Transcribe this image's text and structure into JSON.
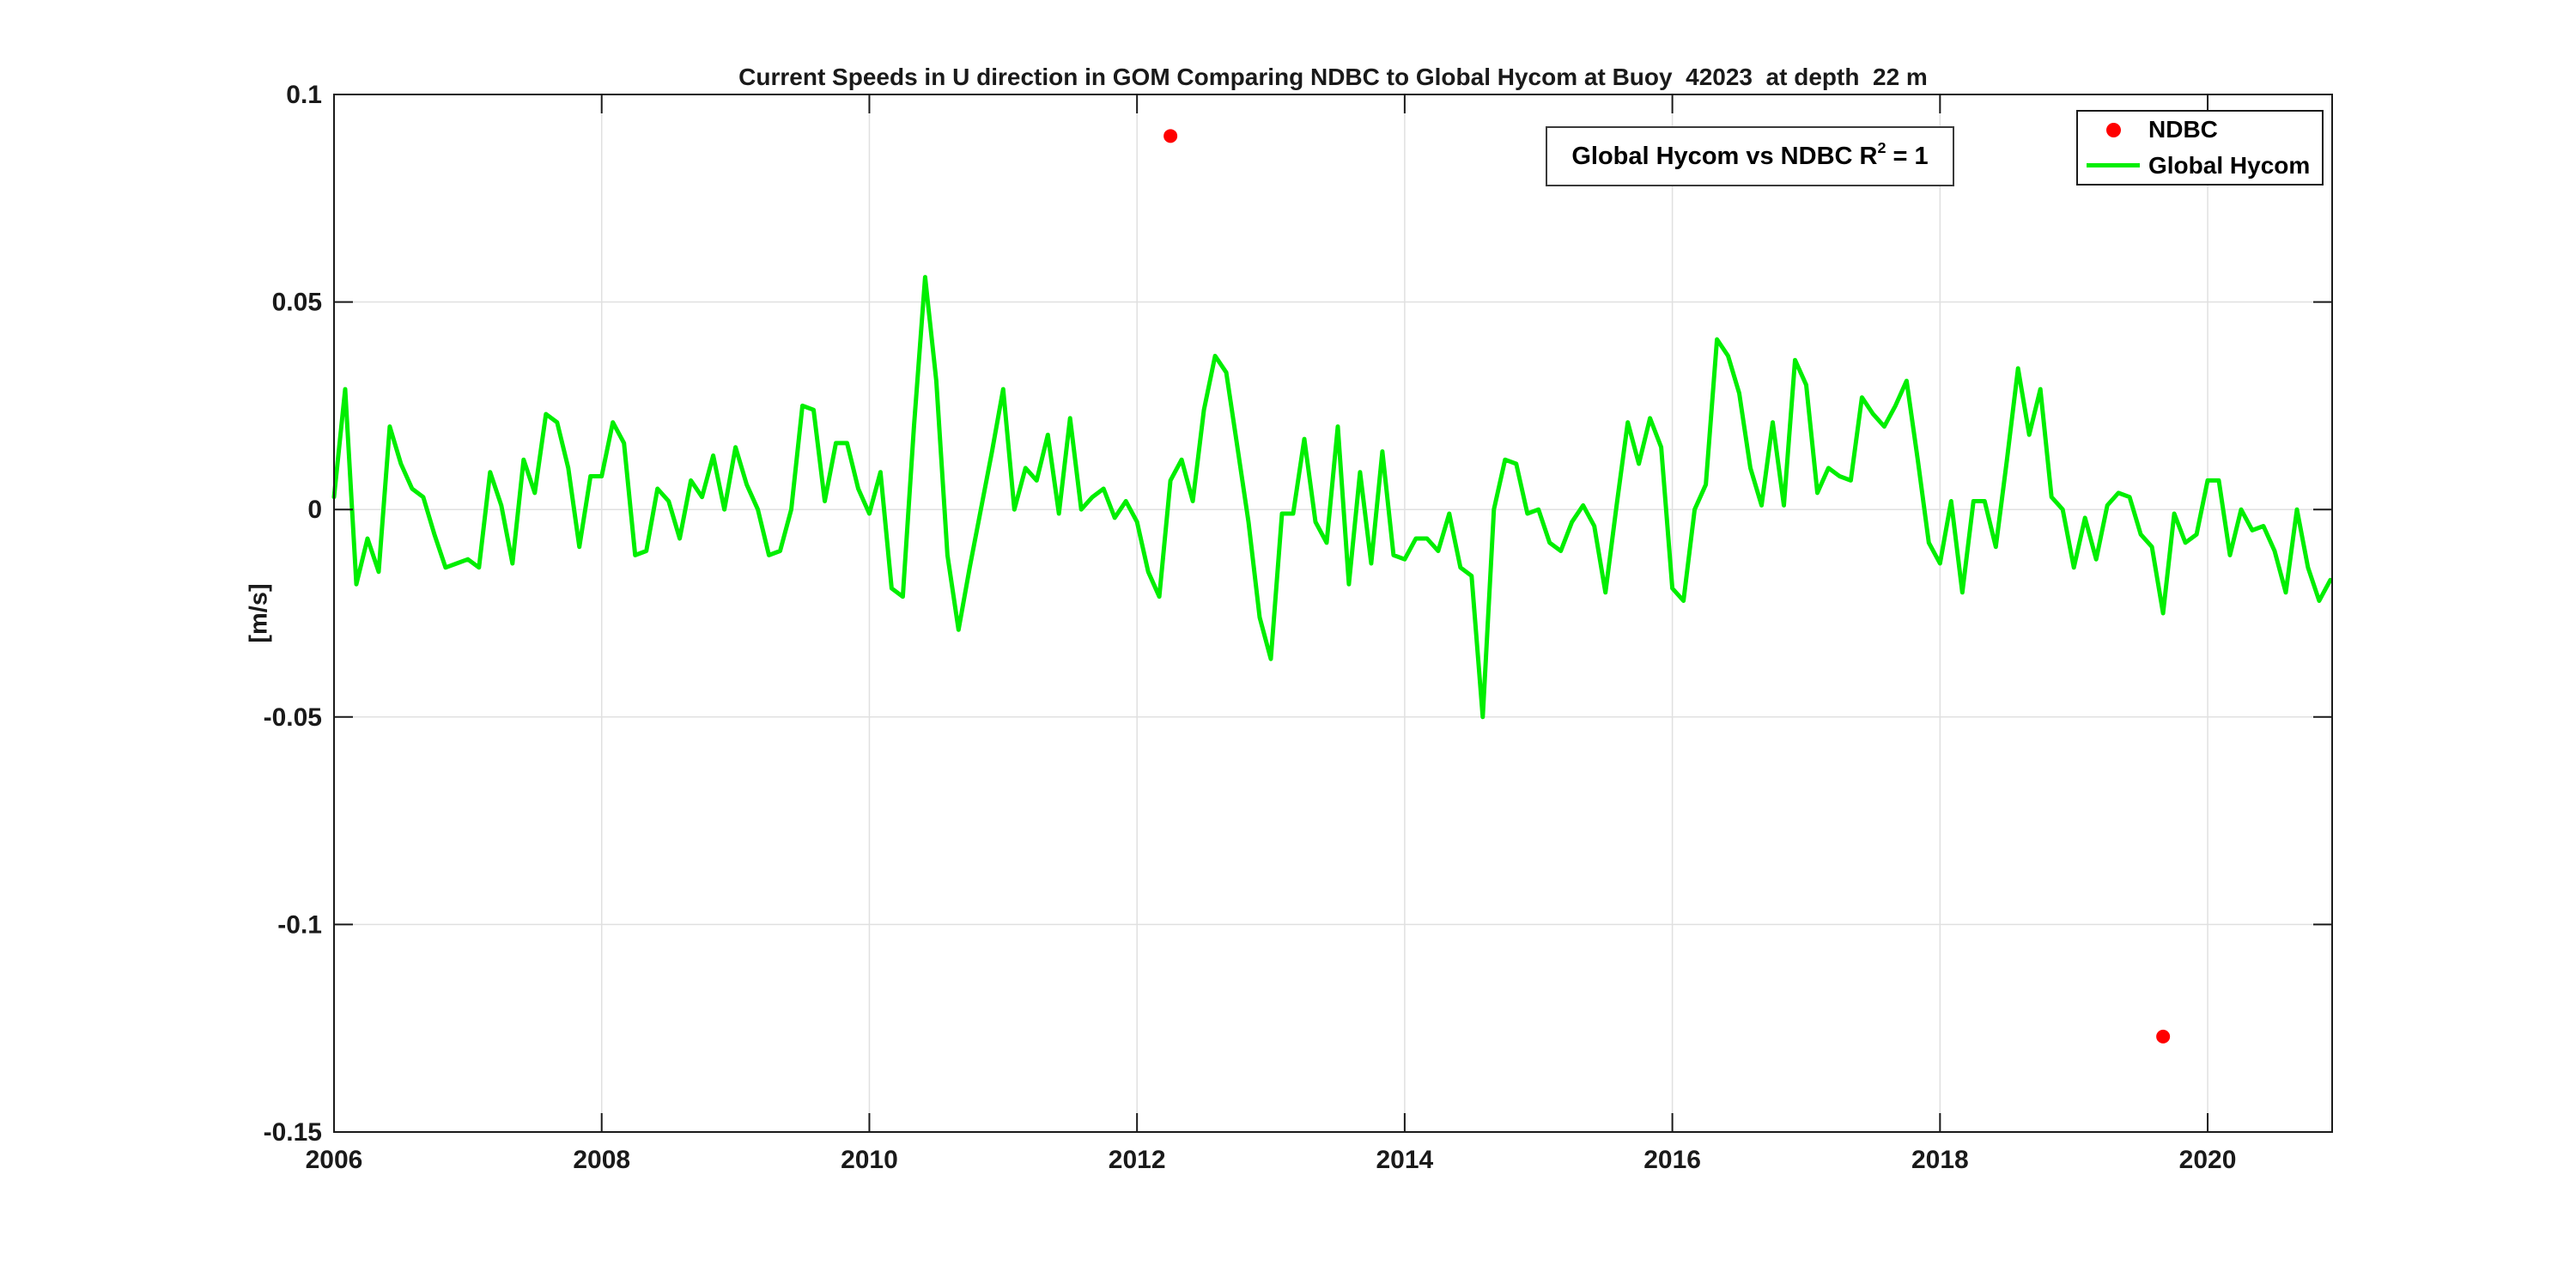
{
  "figure": {
    "title": "Current Speeds in U direction in GOM Comparing NDBC to Global Hycom at Buoy  42023  at depth  22 m",
    "background": "#ffffff",
    "text_color": "#1a1a1a",
    "grid_color": "#e0e0e0",
    "axis_color": "#1a1a1a"
  },
  "annotation": {
    "prefix": "Global Hycom vs NDBC R",
    "superscript": "2",
    "suffix": " = 1"
  },
  "legend": {
    "items": [
      {
        "label": "NDBC",
        "marker": "dot",
        "color": "#ff0000"
      },
      {
        "label": "Global Hycom",
        "marker": "line",
        "color": "#00ee00"
      }
    ]
  },
  "chart_data": {
    "type": "line",
    "title": "Current Speeds in U direction in GOM Comparing NDBC to Global Hycom at Buoy  42023  at depth  22 m",
    "xlabel": "",
    "ylabel": "[m/s]",
    "xlim": [
      2006,
      2020.93
    ],
    "ylim": [
      -0.15,
      0.1
    ],
    "xticks": [
      2006,
      2008,
      2010,
      2012,
      2014,
      2016,
      2018,
      2020
    ],
    "ytick_values": [
      0.1,
      0.05,
      0,
      -0.05,
      -0.1,
      -0.15
    ],
    "ytick_labels": [
      "0.1",
      "0.05",
      "0",
      "-0.05",
      "-0.1",
      "-0.15"
    ],
    "grid": true,
    "legend_position": "top-right",
    "series": [
      {
        "name": "NDBC",
        "type": "scatter",
        "color": "#ff0000",
        "marker_radius": 8,
        "points": [
          {
            "x": 2012.25,
            "y": 0.09
          },
          {
            "x": 2019.667,
            "y": -0.127
          }
        ]
      },
      {
        "name": "Global Hycom",
        "type": "line",
        "color": "#00ee00",
        "line_width": 5,
        "x_start": 2006,
        "x_step": 0.0833333,
        "values": [
          0.003,
          0.029,
          -0.018,
          -0.007,
          -0.015,
          0.02,
          0.011,
          0.005,
          0.003,
          -0.006,
          -0.014,
          -0.013,
          -0.012,
          -0.014,
          0.009,
          0.001,
          -0.013,
          0.012,
          0.004,
          0.023,
          0.021,
          0.01,
          -0.009,
          0.008,
          0.008,
          0.021,
          0.016,
          -0.011,
          -0.01,
          0.005,
          0.002,
          -0.007,
          0.007,
          0.003,
          0.013,
          0.0,
          0.015,
          0.006,
          0.0,
          -0.011,
          -0.01,
          0.0,
          0.025,
          0.024,
          0.002,
          0.016,
          0.016,
          0.005,
          -0.001,
          0.009,
          -0.019,
          -0.021,
          0.02,
          0.056,
          0.031,
          -0.011,
          -0.029,
          -0.014,
          0.0,
          0.014,
          0.029,
          0.0,
          0.01,
          0.007,
          0.018,
          -0.001,
          0.022,
          0.0,
          0.003,
          0.005,
          -0.002,
          0.002,
          -0.003,
          -0.015,
          -0.021,
          0.007,
          0.012,
          0.002,
          0.024,
          0.037,
          0.033,
          0.015,
          -0.003,
          -0.026,
          -0.036,
          -0.001,
          -0.001,
          0.017,
          -0.003,
          -0.008,
          0.02,
          -0.018,
          0.009,
          -0.013,
          0.014,
          -0.011,
          -0.012,
          -0.007,
          -0.007,
          -0.01,
          -0.001,
          -0.014,
          -0.016,
          -0.05,
          0.0,
          0.012,
          0.011,
          -0.001,
          0.0,
          -0.008,
          -0.01,
          -0.003,
          0.001,
          -0.004,
          -0.02,
          0.001,
          0.021,
          0.011,
          0.022,
          0.015,
          -0.019,
          -0.022,
          0.0,
          0.006,
          0.041,
          0.037,
          0.028,
          0.01,
          0.001,
          0.021,
          0.001,
          0.036,
          0.03,
          0.004,
          0.01,
          0.008,
          0.007,
          0.027,
          0.023,
          0.02,
          0.025,
          0.031,
          0.012,
          -0.008,
          -0.013,
          0.002,
          -0.02,
          0.002,
          0.002,
          -0.009,
          0.012,
          0.034,
          0.018,
          0.029,
          0.003,
          0.0,
          -0.014,
          -0.002,
          -0.012,
          0.001,
          0.004,
          0.003,
          -0.006,
          -0.009,
          -0.025,
          -0.001,
          -0.008,
          -0.006,
          0.007,
          0.007,
          -0.011,
          0.0,
          -0.005,
          -0.004,
          -0.01,
          -0.02,
          0.0,
          -0.014,
          -0.022,
          -0.017
        ]
      }
    ]
  }
}
